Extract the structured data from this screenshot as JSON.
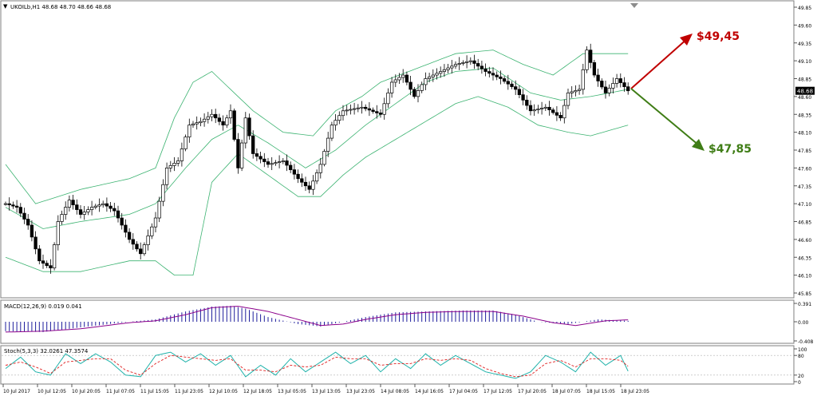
{
  "header": {
    "dropdown_glyph": "▼",
    "symbol_line": "UKOILb,H1  48.68 48.70 48.66 48.68"
  },
  "macd_label": "MACD(12,26,9) 0.019 0.041",
  "stoch_label": "Stoch(5,3,3) 32.0261 47.3574",
  "annotations": {
    "up_target": "$49,45",
    "down_target": "$47,85",
    "up_color": "#c00000",
    "down_color": "#3f7d16"
  },
  "colors": {
    "bollinger": "#3cb371",
    "macd_hist": "#1e1e9c",
    "macd_signal": "#8b008b",
    "stoch_main": "#20b2aa",
    "stoch_signal": "#e02020",
    "candle": "#000000"
  },
  "chart_data": [
    {
      "type": "candlestick",
      "title": "UKOILb,H1",
      "y_ticks": [
        "49.85",
        "49.60",
        "49.35",
        "49.10",
        "48.85",
        "48.60",
        "48.35",
        "48.10",
        "47.85",
        "47.60",
        "47.35",
        "47.10",
        "46.85",
        "46.60",
        "46.35",
        "46.10",
        "45.85"
      ],
      "ylim": [
        45.85,
        49.85
      ],
      "current_price": "48.68",
      "x_ticks": [
        "10 Jul 2017",
        "10 Jul 12:05",
        "10 Jul 20:05",
        "11 Jul 07:05",
        "11 Jul 15:05",
        "11 Jul 23:05",
        "12 Jul 10:05",
        "12 Jul 18:05",
        "13 Jul 05:05",
        "13 Jul 13:05",
        "13 Jul 23:05",
        "14 Jul 08:05",
        "14 Jul 16:05",
        "17 Jul 04:05",
        "17 Jul 12:05",
        "17 Jul 20:05",
        "18 Jul 07:05",
        "18 Jul 15:05",
        "18 Jul 23:05"
      ],
      "close_anchors": [
        [
          0,
          47.1
        ],
        [
          3,
          47.05
        ],
        [
          6,
          46.8
        ],
        [
          9,
          46.3
        ],
        [
          12,
          46.2
        ],
        [
          14,
          46.85
        ],
        [
          17,
          47.15
        ],
        [
          20,
          46.95
        ],
        [
          23,
          47.05
        ],
        [
          26,
          47.1
        ],
        [
          29,
          47.0
        ],
        [
          33,
          46.6
        ],
        [
          36,
          46.4
        ],
        [
          40,
          46.9
        ],
        [
          43,
          47.6
        ],
        [
          46,
          47.7
        ],
        [
          49,
          48.2
        ],
        [
          52,
          48.25
        ],
        [
          55,
          48.35
        ],
        [
          58,
          48.2
        ],
        [
          60,
          48.4
        ],
        [
          62,
          47.6
        ],
        [
          64,
          48.3
        ],
        [
          66,
          47.8
        ],
        [
          70,
          47.65
        ],
        [
          74,
          47.7
        ],
        [
          78,
          47.45
        ],
        [
          81,
          47.3
        ],
        [
          84,
          47.65
        ],
        [
          87,
          48.2
        ],
        [
          90,
          48.4
        ],
        [
          95,
          48.45
        ],
        [
          100,
          48.35
        ],
        [
          103,
          48.8
        ],
        [
          106,
          48.9
        ],
        [
          109,
          48.6
        ],
        [
          112,
          48.85
        ],
        [
          116,
          48.95
        ],
        [
          120,
          49.05
        ],
        [
          124,
          49.1
        ],
        [
          128,
          48.95
        ],
        [
          132,
          48.85
        ],
        [
          136,
          48.7
        ],
        [
          140,
          48.4
        ],
        [
          144,
          48.45
        ],
        [
          148,
          48.3
        ],
        [
          150,
          48.65
        ],
        [
          153,
          48.7
        ],
        [
          155,
          49.25
        ],
        [
          157,
          48.9
        ],
        [
          160,
          48.65
        ],
        [
          163,
          48.85
        ],
        [
          166,
          48.68
        ]
      ],
      "bollinger": {
        "upper_anchors": [
          [
            0,
            47.65
          ],
          [
            8,
            47.1
          ],
          [
            20,
            47.3
          ],
          [
            33,
            47.45
          ],
          [
            40,
            47.6
          ],
          [
            45,
            48.3
          ],
          [
            50,
            48.8
          ],
          [
            55,
            48.95
          ],
          [
            60,
            48.7
          ],
          [
            62,
            48.6
          ],
          [
            66,
            48.4
          ],
          [
            74,
            48.1
          ],
          [
            82,
            48.05
          ],
          [
            88,
            48.4
          ],
          [
            95,
            48.6
          ],
          [
            100,
            48.8
          ],
          [
            110,
            49.0
          ],
          [
            120,
            49.2
          ],
          [
            130,
            49.25
          ],
          [
            138,
            49.05
          ],
          [
            146,
            48.9
          ],
          [
            154,
            49.2
          ],
          [
            160,
            49.2
          ],
          [
            166,
            49.2
          ]
        ],
        "middle_anchors": [
          [
            0,
            47.05
          ],
          [
            10,
            46.75
          ],
          [
            20,
            46.85
          ],
          [
            33,
            46.95
          ],
          [
            40,
            47.1
          ],
          [
            48,
            47.6
          ],
          [
            55,
            48.0
          ],
          [
            62,
            48.2
          ],
          [
            70,
            47.95
          ],
          [
            80,
            47.6
          ],
          [
            88,
            47.85
          ],
          [
            96,
            48.2
          ],
          [
            104,
            48.5
          ],
          [
            112,
            48.8
          ],
          [
            120,
            48.95
          ],
          [
            130,
            49.0
          ],
          [
            140,
            48.65
          ],
          [
            148,
            48.55
          ],
          [
            156,
            48.6
          ],
          [
            166,
            48.7
          ]
        ],
        "lower_anchors": [
          [
            0,
            46.35
          ],
          [
            10,
            46.15
          ],
          [
            20,
            46.15
          ],
          [
            33,
            46.3
          ],
          [
            40,
            46.3
          ],
          [
            45,
            46.1
          ],
          [
            50,
            46.1
          ],
          [
            55,
            47.4
          ],
          [
            62,
            47.8
          ],
          [
            70,
            47.5
          ],
          [
            78,
            47.2
          ],
          [
            84,
            47.2
          ],
          [
            90,
            47.5
          ],
          [
            96,
            47.75
          ],
          [
            104,
            48.0
          ],
          [
            112,
            48.25
          ],
          [
            120,
            48.5
          ],
          [
            126,
            48.6
          ],
          [
            134,
            48.45
          ],
          [
            142,
            48.2
          ],
          [
            150,
            48.1
          ],
          [
            156,
            48.05
          ],
          [
            166,
            48.2
          ]
        ]
      }
    },
    {
      "type": "bar",
      "title": "MACD(12,26,9) 0.019 0.041",
      "y_ticks": [
        "0.391",
        "0.00",
        "-0.408"
      ],
      "ylim": [
        -0.408,
        0.391
      ],
      "hist_anchors": [
        [
          0,
          -0.2
        ],
        [
          10,
          -0.22
        ],
        [
          20,
          -0.12
        ],
        [
          33,
          0.0
        ],
        [
          40,
          0.05
        ],
        [
          48,
          0.22
        ],
        [
          55,
          0.32
        ],
        [
          60,
          0.34
        ],
        [
          64,
          0.28
        ],
        [
          70,
          0.1
        ],
        [
          78,
          -0.05
        ],
        [
          84,
          -0.1
        ],
        [
          90,
          0.0
        ],
        [
          96,
          0.1
        ],
        [
          104,
          0.2
        ],
        [
          112,
          0.22
        ],
        [
          122,
          0.24
        ],
        [
          130,
          0.24
        ],
        [
          136,
          0.15
        ],
        [
          142,
          0.0
        ],
        [
          150,
          -0.05
        ],
        [
          158,
          0.05
        ],
        [
          166,
          0.02
        ]
      ],
      "signal_anchors": [
        [
          0,
          -0.22
        ],
        [
          10,
          -0.2
        ],
        [
          20,
          -0.15
        ],
        [
          33,
          -0.02
        ],
        [
          40,
          0.02
        ],
        [
          48,
          0.15
        ],
        [
          55,
          0.3
        ],
        [
          62,
          0.33
        ],
        [
          70,
          0.22
        ],
        [
          78,
          0.05
        ],
        [
          84,
          -0.08
        ],
        [
          90,
          -0.05
        ],
        [
          96,
          0.05
        ],
        [
          104,
          0.15
        ],
        [
          112,
          0.2
        ],
        [
          122,
          0.22
        ],
        [
          130,
          0.22
        ],
        [
          138,
          0.12
        ],
        [
          146,
          -0.02
        ],
        [
          152,
          -0.08
        ],
        [
          160,
          0.02
        ],
        [
          166,
          0.04
        ]
      ]
    },
    {
      "type": "line",
      "title": "Stoch(5,3,3) 32.0261 47.3574",
      "y_ticks": [
        "100",
        "80",
        "20",
        "0"
      ],
      "ylim": [
        0,
        100
      ],
      "main_anchors": [
        [
          0,
          40
        ],
        [
          4,
          75
        ],
        [
          8,
          30
        ],
        [
          12,
          20
        ],
        [
          16,
          85
        ],
        [
          20,
          55
        ],
        [
          24,
          85
        ],
        [
          28,
          60
        ],
        [
          32,
          20
        ],
        [
          36,
          15
        ],
        [
          40,
          80
        ],
        [
          44,
          90
        ],
        [
          48,
          60
        ],
        [
          52,
          85
        ],
        [
          56,
          50
        ],
        [
          60,
          80
        ],
        [
          64,
          15
        ],
        [
          68,
          50
        ],
        [
          72,
          20
        ],
        [
          76,
          70
        ],
        [
          80,
          30
        ],
        [
          84,
          60
        ],
        [
          88,
          90
        ],
        [
          92,
          55
        ],
        [
          96,
          80
        ],
        [
          100,
          30
        ],
        [
          104,
          70
        ],
        [
          108,
          40
        ],
        [
          112,
          85
        ],
        [
          116,
          50
        ],
        [
          120,
          80
        ],
        [
          124,
          55
        ],
        [
          128,
          30
        ],
        [
          132,
          20
        ],
        [
          136,
          10
        ],
        [
          140,
          30
        ],
        [
          144,
          80
        ],
        [
          148,
          60
        ],
        [
          152,
          30
        ],
        [
          156,
          90
        ],
        [
          160,
          50
        ],
        [
          164,
          80
        ],
        [
          166,
          32
        ]
      ],
      "signal_anchors": [
        [
          0,
          50
        ],
        [
          4,
          60
        ],
        [
          8,
          45
        ],
        [
          12,
          25
        ],
        [
          16,
          60
        ],
        [
          20,
          65
        ],
        [
          24,
          70
        ],
        [
          28,
          70
        ],
        [
          32,
          35
        ],
        [
          36,
          20
        ],
        [
          40,
          55
        ],
        [
          44,
          80
        ],
        [
          48,
          75
        ],
        [
          52,
          70
        ],
        [
          56,
          65
        ],
        [
          60,
          70
        ],
        [
          64,
          35
        ],
        [
          68,
          35
        ],
        [
          72,
          30
        ],
        [
          76,
          50
        ],
        [
          80,
          45
        ],
        [
          84,
          50
        ],
        [
          88,
          75
        ],
        [
          92,
          70
        ],
        [
          96,
          70
        ],
        [
          100,
          50
        ],
        [
          104,
          55
        ],
        [
          108,
          55
        ],
        [
          112,
          70
        ],
        [
          116,
          65
        ],
        [
          120,
          70
        ],
        [
          124,
          65
        ],
        [
          128,
          40
        ],
        [
          132,
          25
        ],
        [
          136,
          15
        ],
        [
          140,
          20
        ],
        [
          144,
          55
        ],
        [
          148,
          65
        ],
        [
          152,
          45
        ],
        [
          156,
          70
        ],
        [
          160,
          70
        ],
        [
          164,
          65
        ],
        [
          166,
          47
        ]
      ]
    }
  ]
}
